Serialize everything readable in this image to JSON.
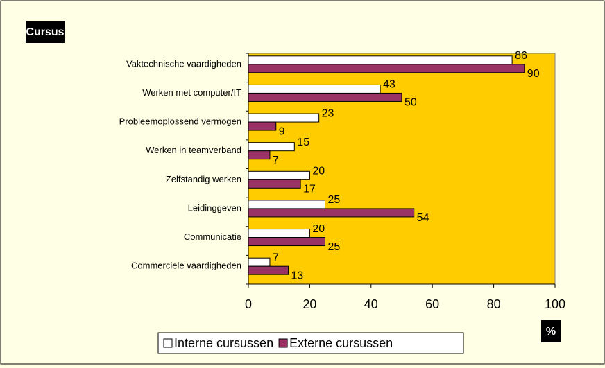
{
  "chart_data": {
    "type": "bar",
    "orientation": "horizontal",
    "title": "Cursus",
    "x_label": "%",
    "categories": [
      "Vaktechnische vaardigheden",
      "Werken met computer/IT",
      "Probleemoplossend vermogen",
      "Werken in teamverband",
      "Zelfstandig werken",
      "Leidinggeven",
      "Communicatie",
      "Commerciele vaardigheden"
    ],
    "series": [
      {
        "name": "Interne cursussen",
        "color": "#ffffff",
        "values": [
          86,
          43,
          23,
          15,
          20,
          25,
          20,
          7
        ]
      },
      {
        "name": "Externe cursussen",
        "color": "#993366",
        "values": [
          90,
          50,
          9,
          7,
          17,
          54,
          25,
          13
        ]
      }
    ],
    "xlim": [
      0,
      100
    ],
    "xticks": [
      0,
      20,
      40,
      60,
      80,
      100
    ],
    "legend": "bottom",
    "plot_color": "#ffcc00"
  }
}
